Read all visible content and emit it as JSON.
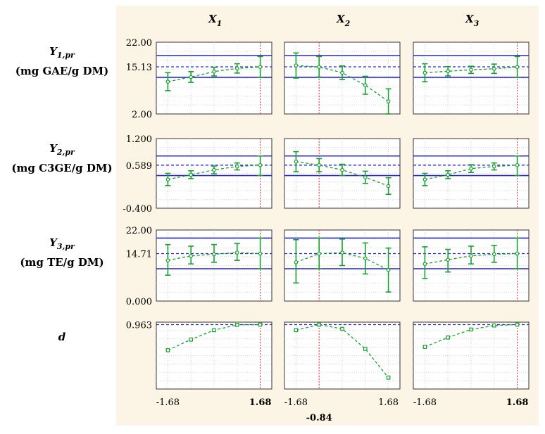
{
  "chart_data": {
    "type": "line",
    "kind": "profiles-for-predicted-values-and-desirability",
    "columns": [
      {
        "symbol": "X",
        "sub": "1",
        "current": 1.68,
        "current_label": "1.68"
      },
      {
        "symbol": "X",
        "sub": "2",
        "current": -0.84,
        "current_label": "-0.84"
      },
      {
        "symbol": "X",
        "sub": "3",
        "current": 1.68,
        "current_label": "1.68"
      }
    ],
    "x": [
      -1.68,
      -0.84,
      0,
      0.84,
      1.68
    ],
    "x_tick_label": "-1.68",
    "rows": [
      {
        "symbol": "Y",
        "sub": "1,pr",
        "unit": "(mg GAE/g DM)",
        "ylim": [
          2.0,
          22.0
        ],
        "ticks": [
          "22.00",
          "15.13",
          "2.00"
        ],
        "tick_values": [
          22.0,
          15.13,
          2.0
        ],
        "hlines": [
          18.3,
          12.2
        ],
        "dashed": 15.13,
        "panels": [
          {
            "y": [
              11.0,
              12.3,
              13.8,
              14.7,
              15.1
            ],
            "lo": [
              8.5,
              10.8,
              12.6,
              13.4,
              12.2
            ],
            "hi": [
              13.5,
              13.8,
              15.0,
              16.0,
              18.0
            ]
          },
          {
            "y": [
              15.5,
              15.1,
              13.5,
              10.0,
              5.5
            ],
            "lo": [
              12.0,
              12.3,
              11.6,
              7.5,
              2.0
            ],
            "hi": [
              19.0,
              18.0,
              15.4,
              12.5,
              9.0
            ]
          },
          {
            "y": [
              13.5,
              13.9,
              14.3,
              14.6,
              15.1
            ],
            "lo": [
              11.0,
              12.6,
              13.3,
              13.3,
              12.2
            ],
            "hi": [
              16.0,
              15.2,
              15.3,
              15.9,
              18.0
            ]
          }
        ]
      },
      {
        "symbol": "Y",
        "sub": "2,pr",
        "unit": "(mg C3GE/g DM)",
        "ylim": [
          -0.4,
          1.2
        ],
        "ticks": [
          "1.200",
          "0.589",
          "-0.400"
        ],
        "tick_values": [
          1.2,
          0.589,
          -0.4
        ],
        "hlines": [
          0.8,
          0.35
        ],
        "dashed": 0.589,
        "panels": [
          {
            "y": [
              0.26,
              0.37,
              0.48,
              0.56,
              0.59
            ],
            "lo": [
              0.12,
              0.28,
              0.39,
              0.48,
              0.35
            ],
            "hi": [
              0.4,
              0.46,
              0.57,
              0.64,
              0.8
            ]
          },
          {
            "y": [
              0.67,
              0.59,
              0.48,
              0.31,
              0.11
            ],
            "lo": [
              0.44,
              0.44,
              0.35,
              0.17,
              -0.08
            ],
            "hi": [
              0.9,
              0.74,
              0.61,
              0.45,
              0.3
            ]
          },
          {
            "y": [
              0.26,
              0.37,
              0.51,
              0.56,
              0.59
            ],
            "lo": [
              0.12,
              0.28,
              0.42,
              0.48,
              0.35
            ],
            "hi": [
              0.4,
              0.46,
              0.6,
              0.64,
              0.8
            ]
          }
        ]
      },
      {
        "symbol": "Y",
        "sub": "3,pr",
        "unit": "(mg TE/g DM)",
        "ylim": [
          0.0,
          22.0
        ],
        "ticks": [
          "22.00",
          "14.71",
          "0.000"
        ],
        "tick_values": [
          22.0,
          14.71,
          0.0
        ],
        "hlines": [
          19.5,
          10.0
        ],
        "dashed": 14.71,
        "panels": [
          {
            "y": [
              12.6,
              14.0,
              14.5,
              15.0,
              14.7
            ],
            "lo": [
              8.0,
              11.5,
              12.0,
              12.6,
              10.0
            ],
            "hi": [
              17.5,
              17.0,
              17.5,
              17.8,
              19.5
            ]
          },
          {
            "y": [
              12.0,
              14.7,
              15.0,
              13.2,
              9.6
            ],
            "lo": [
              5.6,
              10.0,
              11.0,
              8.4,
              2.8
            ],
            "hi": [
              19.0,
              19.5,
              19.2,
              18.0,
              16.4
            ]
          },
          {
            "y": [
              11.5,
              12.8,
              14.0,
              14.5,
              14.7
            ],
            "lo": [
              7.0,
              9.0,
              11.5,
              12.0,
              10.0
            ],
            "hi": [
              16.8,
              16.0,
              17.0,
              17.2,
              19.5
            ]
          }
        ]
      },
      {
        "symbol": "d",
        "sub": "",
        "unit": "",
        "ylim": [
          0.0,
          1.0
        ],
        "ticks": [
          "0.963"
        ],
        "tick_values": [
          0.963
        ],
        "dashed": 0.963,
        "panels": [
          {
            "y": [
              0.58,
              0.74,
              0.88,
              0.96,
              0.963
            ]
          },
          {
            "y": [
              0.88,
              0.963,
              0.9,
              0.6,
              0.17
            ]
          },
          {
            "y": [
              0.63,
              0.77,
              0.89,
              0.95,
              0.963
            ]
          }
        ]
      }
    ],
    "colors": {
      "background": "#fcf5e5",
      "plot_bg": "#ffffff",
      "line": "#16a12e",
      "hline": "#2b2bcc",
      "current": "#e03030"
    }
  }
}
